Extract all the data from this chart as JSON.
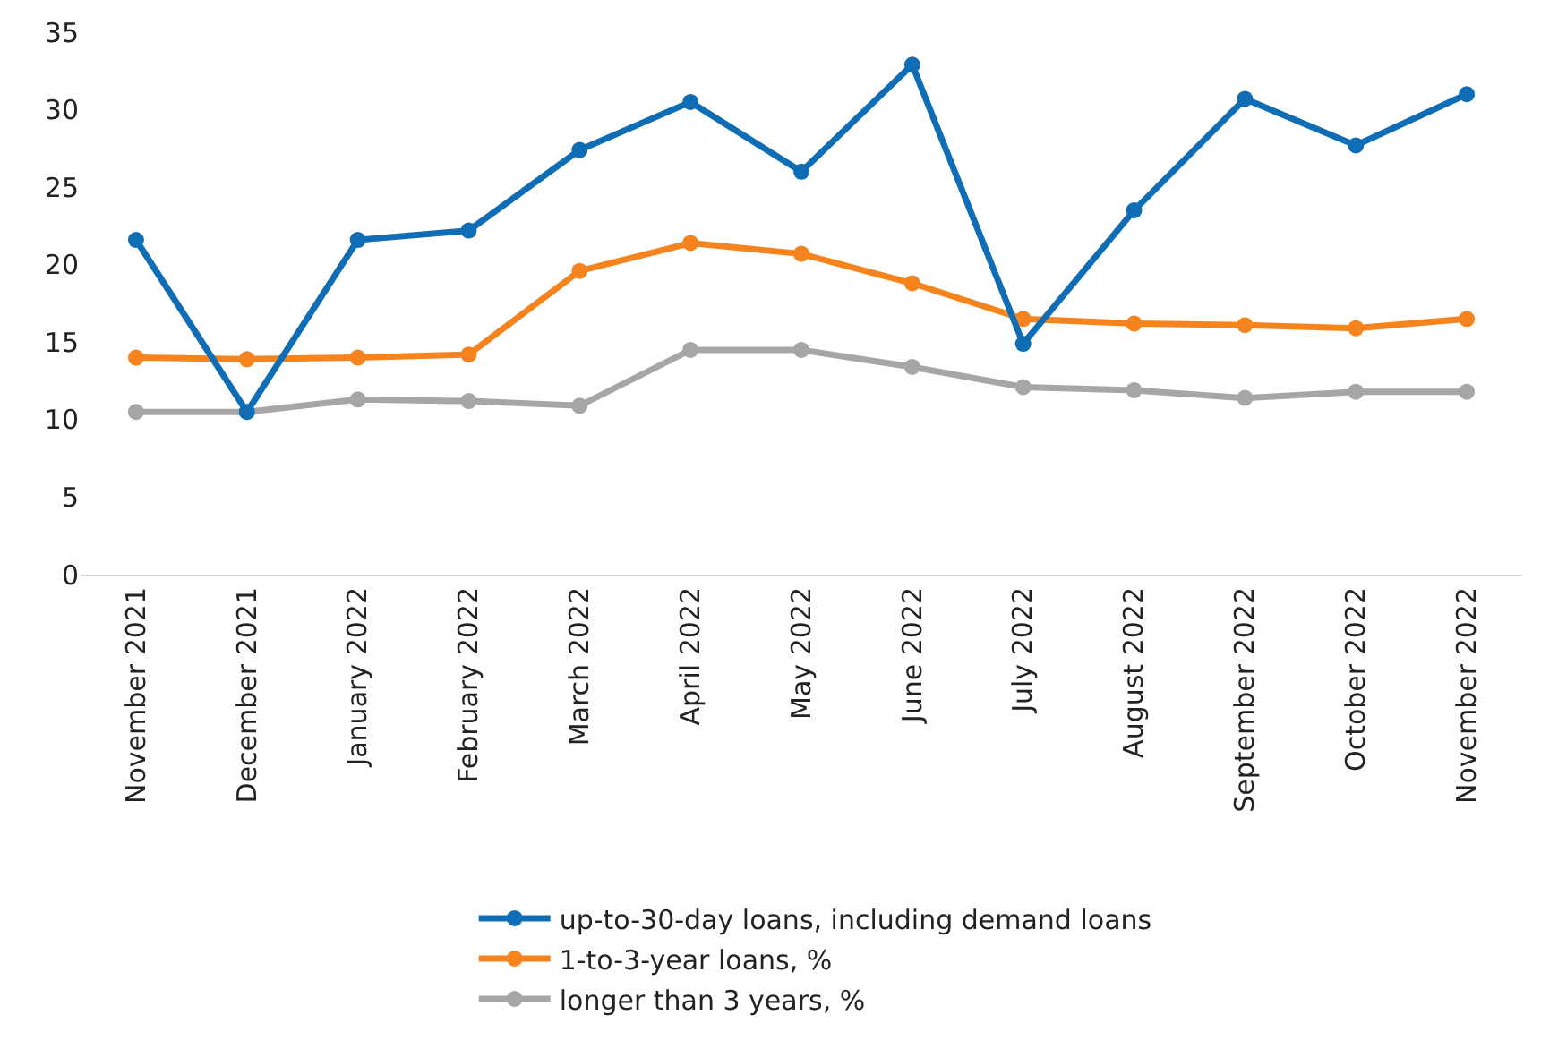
{
  "chart_data": {
    "type": "line",
    "categories": [
      "November 2021",
      "December 2021",
      "January 2022",
      "February 2022",
      "March 2022",
      "April 2022",
      "May 2022",
      "June 2022",
      "July 2022",
      "August 2022",
      "September 2022",
      "October 2022",
      "November 2022"
    ],
    "series": [
      {
        "name": "up-to-30-day loans, including demand loans",
        "color": "#0f6db5",
        "values": [
          21.6,
          10.5,
          21.6,
          22.2,
          27.4,
          30.5,
          26.0,
          32.9,
          14.9,
          23.5,
          30.7,
          27.7,
          31.0
        ]
      },
      {
        "name": "1-to-3-year loans, %",
        "color": "#f5841f",
        "values": [
          14.0,
          13.9,
          14.0,
          14.2,
          19.6,
          21.4,
          20.7,
          18.8,
          16.5,
          16.2,
          16.1,
          15.9,
          16.5
        ]
      },
      {
        "name": "longer than 3 years, %",
        "color": "#a6a6a6",
        "values": [
          10.5,
          10.5,
          11.3,
          11.2,
          10.9,
          14.5,
          14.5,
          13.4,
          12.1,
          11.9,
          11.4,
          11.8,
          11.8
        ]
      }
    ],
    "ylim": [
      0,
      35
    ],
    "yticks": [
      0,
      5,
      10,
      15,
      20,
      25,
      30,
      35
    ],
    "grid": false,
    "legend": "bottom",
    "marker": "circle",
    "line_style": "solid"
  }
}
